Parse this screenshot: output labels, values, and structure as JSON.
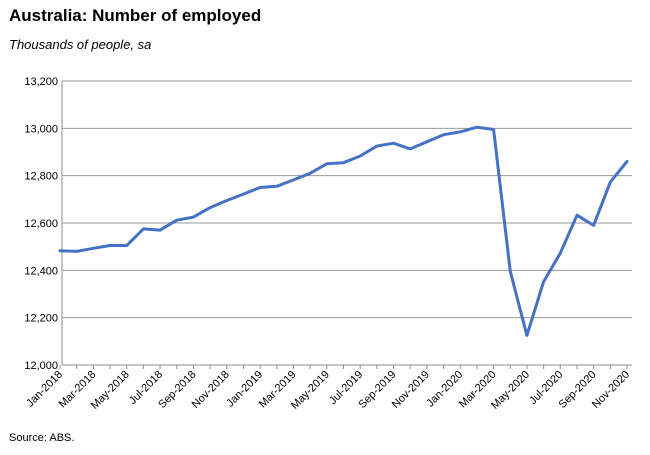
{
  "title": "Australia: Number of employed",
  "subtitle": "Thousands of people, sa",
  "source": "Source: ABS.",
  "chart_data": {
    "type": "line",
    "title": "Australia: Number of employed",
    "subtitle": "Thousands of people, sa",
    "xlabel": "",
    "ylabel": "",
    "ylim": [
      12000,
      13200
    ],
    "yticks": [
      12000,
      12200,
      12400,
      12600,
      12800,
      13000,
      13200
    ],
    "ytick_labels": [
      "12,000",
      "12,200",
      "12,400",
      "12,600",
      "12,800",
      "13,000",
      "13,200"
    ],
    "grid": true,
    "legend": "none",
    "line_color": "#4472c4",
    "x": [
      "Jan-2018",
      "Feb-2018",
      "Mar-2018",
      "Apr-2018",
      "May-2018",
      "Jun-2018",
      "Jul-2018",
      "Aug-2018",
      "Sep-2018",
      "Oct-2018",
      "Nov-2018",
      "Dec-2018",
      "Jan-2019",
      "Feb-2019",
      "Mar-2019",
      "Apr-2019",
      "May-2019",
      "Jun-2019",
      "Jul-2019",
      "Aug-2019",
      "Sep-2019",
      "Oct-2019",
      "Nov-2019",
      "Dec-2019",
      "Jan-2020",
      "Feb-2020",
      "Mar-2020",
      "Apr-2020",
      "May-2020",
      "Jun-2020",
      "Jul-2020",
      "Aug-2020",
      "Sep-2020",
      "Oct-2020",
      "Nov-2020"
    ],
    "xtick_labels": [
      "Jan-2018",
      "Mar-2018",
      "May-2018",
      "Jul-2018",
      "Sep-2018",
      "Nov-2018",
      "Jan-2019",
      "Mar-2019",
      "May-2019",
      "Jul-2019",
      "Sep-2019",
      "Nov-2019",
      "Jan-2020",
      "Mar-2020",
      "May-2020",
      "Jul-2020",
      "Sep-2020",
      "Nov-2020"
    ],
    "series": [
      {
        "values": [
          12483,
          12480,
          12493,
          12505,
          12505,
          12575,
          12570,
          12612,
          12625,
          12665,
          12695,
          12722,
          12750,
          12755,
          12782,
          12810,
          12850,
          12855,
          12883,
          12925,
          12937,
          12913,
          12943,
          12973,
          12985,
          13005,
          12995,
          12395,
          12125,
          12352,
          12473,
          12633,
          12590,
          12773,
          12860
        ]
      }
    ]
  }
}
